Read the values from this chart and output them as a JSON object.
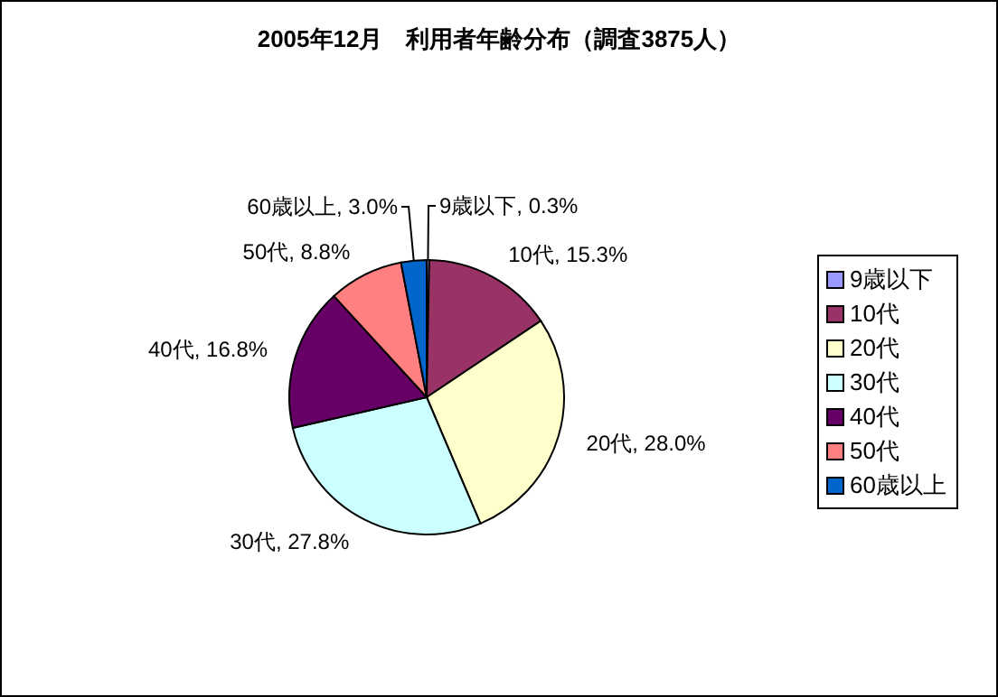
{
  "chart_data": {
    "type": "pie",
    "title": "2005年12月　利用者年齢分布（調査3875人）",
    "categories": [
      "9歳以下",
      "10代",
      "20代",
      "30代",
      "40代",
      "50代",
      "60歳以上"
    ],
    "values": [
      0.3,
      15.3,
      28.0,
      27.8,
      16.8,
      8.8,
      3.0
    ],
    "value_labels": [
      "9歳以下, 0.3%",
      "10代, 15.3%",
      "20代, 28.0%",
      "30代, 27.8%",
      "40代, 16.8%",
      "50代, 8.8%",
      "60歳以上, 3.0%"
    ],
    "colors": [
      "#9999ff",
      "#993366",
      "#ffffcc",
      "#ccffff",
      "#660066",
      "#ff8080",
      "#0066cc"
    ],
    "legend": "right"
  }
}
